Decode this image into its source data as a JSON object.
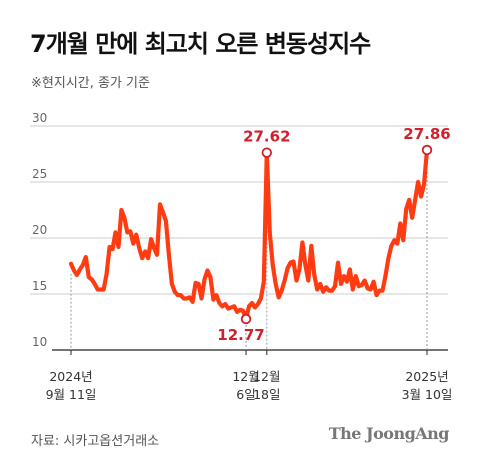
{
  "title": "7개월 만에 최고치 오른 변동성지수",
  "subtitle": "※현지시간, 종가 기준",
  "source": "자료: 시카고옵션거래소",
  "logo": "The JoongAng",
  "colors": {
    "line": "#ff3b12",
    "highlight": "#d31f2a",
    "grid": "#cccccc",
    "axis": "#222222"
  },
  "chart_data": {
    "type": "line",
    "title": "7개월 만에 최고치 오른 변동성지수",
    "ylim": [
      10,
      30
    ],
    "yticks": [
      10,
      15,
      20,
      25,
      30
    ],
    "grid": true,
    "x_ticks": [
      {
        "index": 0,
        "line1": "2024년",
        "line2": "9월 11일"
      },
      {
        "index": 59,
        "line1": "12월",
        "line2": "6일"
      },
      {
        "index": 66,
        "line1": "12월",
        "line2": "18일"
      },
      {
        "index": 120,
        "line1": "2025년",
        "line2": "3월 10일"
      }
    ],
    "annotations": [
      {
        "index": 59,
        "value": 12.77,
        "label": "12.77"
      },
      {
        "index": 66,
        "value": 27.62,
        "label": "27.62"
      },
      {
        "index": 120,
        "value": 27.86,
        "label": "27.86"
      }
    ],
    "series": [
      {
        "values": [
          17.7,
          17.1,
          16.7,
          17.2,
          17.6,
          18.3,
          16.5,
          16.3,
          15.9,
          15.4,
          15.4,
          15.4,
          16.8,
          19.2,
          19.0,
          20.5,
          19.2,
          22.5,
          21.8,
          20.5,
          20.6,
          19.5,
          20.3,
          19.1,
          18.2,
          18.8,
          18.2,
          19.9,
          19.1,
          18.5,
          23.0,
          22.3,
          21.5,
          18.5,
          15.9,
          15.2,
          14.9,
          14.9,
          14.6,
          14.6,
          14.7,
          14.3,
          16.0,
          15.9,
          14.6,
          16.3,
          17.1,
          16.5,
          14.5,
          14.9,
          14.2,
          13.9,
          14.1,
          13.7,
          13.8,
          13.9,
          13.4,
          13.6,
          13.5,
          12.77,
          13.9,
          14.2,
          13.8,
          14.1,
          14.6,
          16.1,
          27.62,
          20.5,
          17.6,
          15.9,
          14.7,
          15.3,
          16.2,
          17.3,
          17.8,
          17.9,
          16.2,
          17.2,
          19.6,
          17.6,
          16.2,
          19.3,
          16.7,
          15.4,
          15.9,
          15.2,
          15.6,
          15.3,
          15.3,
          15.7,
          17.8,
          15.9,
          16.6,
          16.1,
          17.2,
          15.4,
          16.6,
          15.7,
          15.8,
          16.2,
          15.5,
          15.4,
          16.1,
          14.9,
          15.3,
          15.3,
          16.6,
          18.2,
          19.3,
          19.8,
          19.5,
          21.3,
          19.8,
          22.6,
          23.4,
          21.8,
          23.4,
          25.0,
          23.7,
          24.8,
          27.86
        ]
      }
    ]
  }
}
